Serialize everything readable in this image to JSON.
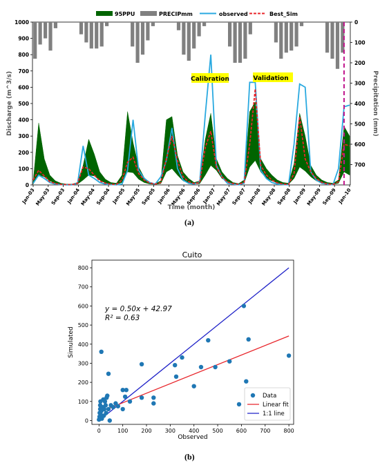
{
  "figure": {
    "caption_a": "(a)",
    "caption_b": "(b)"
  },
  "chart_data": [
    {
      "type": "line",
      "xlabel": "Time (month)",
      "ylabel": "Discharge (m^3/s)",
      "y2label": "Precipitation (mm)",
      "ylim": [
        0,
        1000
      ],
      "y2lim_inverted": [
        0,
        800
      ],
      "yticks": [
        0,
        100,
        200,
        300,
        400,
        500,
        600,
        700,
        800,
        900,
        1000
      ],
      "y2ticks": [
        0,
        100,
        200,
        300,
        400,
        500,
        600,
        700
      ],
      "xticks": [
        "Jan-03",
        "May-03",
        "Sep-03",
        "Jan-04",
        "May-04",
        "Sep-04",
        "Jan-05",
        "May-05",
        "Sep-05",
        "Jan-06",
        "May-06",
        "Sep-06",
        "Jan-07",
        "May-07",
        "Sep-07",
        "Jan-08",
        "May-08",
        "Sep-08",
        "Jan-09",
        "May-09",
        "Sep-09",
        "Jan-10"
      ],
      "legend": [
        "95PPU",
        "PRECIPmm",
        "observed",
        "Best_Sim"
      ],
      "legend_placement": "top",
      "annotations": [
        "Calibration",
        "Validation"
      ],
      "divider_month_index": 56,
      "series": [
        {
          "name": "95PPU_upper",
          "values": [
            20,
            380,
            160,
            60,
            25,
            10,
            5,
            5,
            15,
            120,
            280,
            190,
            80,
            35,
            15,
            10,
            60,
            450,
            260,
            110,
            45,
            15,
            8,
            25,
            400,
            420,
            180,
            80,
            40,
            15,
            25,
            280,
            440,
            160,
            80,
            40,
            15,
            8,
            30,
            450,
            510,
            160,
            100,
            60,
            30,
            15,
            10,
            130,
            440,
            300,
            120,
            60,
            30,
            15,
            10,
            30,
            360,
            300
          ]
        },
        {
          "name": "95PPU_lower",
          "values": [
            5,
            60,
            50,
            25,
            10,
            5,
            3,
            3,
            5,
            30,
            60,
            55,
            30,
            12,
            6,
            4,
            15,
            80,
            75,
            35,
            15,
            6,
            3,
            8,
            80,
            100,
            60,
            25,
            12,
            6,
            8,
            60,
            120,
            90,
            40,
            20,
            8,
            4,
            10,
            110,
            150,
            80,
            40,
            25,
            12,
            6,
            4,
            40,
            110,
            85,
            50,
            25,
            12,
            6,
            4,
            10,
            80,
            60
          ]
        },
        {
          "name": "observed",
          "values": [
            10,
            60,
            40,
            15,
            5,
            2,
            1,
            1,
            10,
            240,
            60,
            40,
            15,
            5,
            2,
            1,
            5,
            90,
            400,
            90,
            40,
            15,
            5,
            50,
            150,
            350,
            100,
            30,
            10,
            5,
            20,
            430,
            800,
            120,
            50,
            10,
            5,
            1,
            10,
            630,
            630,
            90,
            40,
            15,
            5,
            2,
            1,
            250,
            620,
            600,
            80,
            30,
            10,
            5,
            1,
            100,
            480,
            490
          ]
        },
        {
          "name": "Best_Sim",
          "values": [
            30,
            90,
            55,
            20,
            8,
            3,
            2,
            2,
            10,
            110,
            100,
            60,
            25,
            10,
            4,
            3,
            30,
            140,
            170,
            70,
            30,
            12,
            5,
            15,
            160,
            300,
            150,
            50,
            20,
            8,
            15,
            230,
            330,
            110,
            50,
            18,
            8,
            4,
            15,
            250,
            590,
            120,
            60,
            30,
            12,
            5,
            3,
            70,
            420,
            160,
            80,
            40,
            15,
            6,
            3,
            20,
            250,
            240
          ]
        }
      ],
      "precip_mm": [
        180,
        110,
        80,
        140,
        30,
        0,
        0,
        0,
        0,
        60,
        100,
        130,
        130,
        120,
        20,
        0,
        0,
        0,
        0,
        120,
        200,
        160,
        90,
        20,
        0,
        0,
        0,
        0,
        40,
        160,
        190,
        130,
        70,
        20,
        0,
        0,
        0,
        0,
        120,
        200,
        200,
        180,
        60,
        0,
        0,
        0,
        0,
        100,
        180,
        150,
        140,
        120,
        20,
        0,
        0,
        0,
        0,
        150,
        180,
        230,
        150,
        0
      ]
    },
    {
      "type": "scatter",
      "title": "Cuito",
      "xlabel": "Observed",
      "ylabel": "Simulated",
      "xlim": [
        -30,
        820
      ],
      "ylim": [
        -20,
        840
      ],
      "xticks": [
        0,
        100,
        200,
        300,
        400,
        500,
        600,
        700,
        800
      ],
      "yticks": [
        0,
        100,
        200,
        300,
        400,
        500,
        600,
        700,
        800
      ],
      "equation": "y = 0.50x + 42.97",
      "r2": "R² = 0.63",
      "fit": {
        "slope": 0.5,
        "intercept": 42.97
      },
      "legend": [
        "Data",
        "Linear fit",
        "1:1 line"
      ],
      "legend_placement": "lower-right",
      "colors": {
        "data": "#1f77b4",
        "fit": "#e8242a",
        "identity": "#1f22c8"
      },
      "points": [
        [
          0,
          5
        ],
        [
          2,
          20
        ],
        [
          3,
          40
        ],
        [
          5,
          60
        ],
        [
          5,
          80
        ],
        [
          6,
          100
        ],
        [
          8,
          30
        ],
        [
          10,
          50
        ],
        [
          10,
          360
        ],
        [
          12,
          10
        ],
        [
          15,
          70
        ],
        [
          18,
          110
        ],
        [
          20,
          25
        ],
        [
          22,
          60
        ],
        [
          25,
          100
        ],
        [
          28,
          80
        ],
        [
          30,
          40
        ],
        [
          32,
          120
        ],
        [
          35,
          130
        ],
        [
          40,
          60
        ],
        [
          40,
          245
        ],
        [
          45,
          0
        ],
        [
          50,
          80
        ],
        [
          60,
          70
        ],
        [
          70,
          90
        ],
        [
          80,
          75
        ],
        [
          100,
          160
        ],
        [
          100,
          60
        ],
        [
          110,
          125
        ],
        [
          115,
          160
        ],
        [
          130,
          100
        ],
        [
          180,
          295
        ],
        [
          180,
          120
        ],
        [
          230,
          120
        ],
        [
          230,
          90
        ],
        [
          320,
          290
        ],
        [
          325,
          230
        ],
        [
          350,
          330
        ],
        [
          400,
          180
        ],
        [
          430,
          280
        ],
        [
          460,
          420
        ],
        [
          490,
          280
        ],
        [
          550,
          310
        ],
        [
          590,
          85
        ],
        [
          610,
          600
        ],
        [
          620,
          205
        ],
        [
          630,
          425
        ],
        [
          800,
          340
        ]
      ]
    }
  ]
}
